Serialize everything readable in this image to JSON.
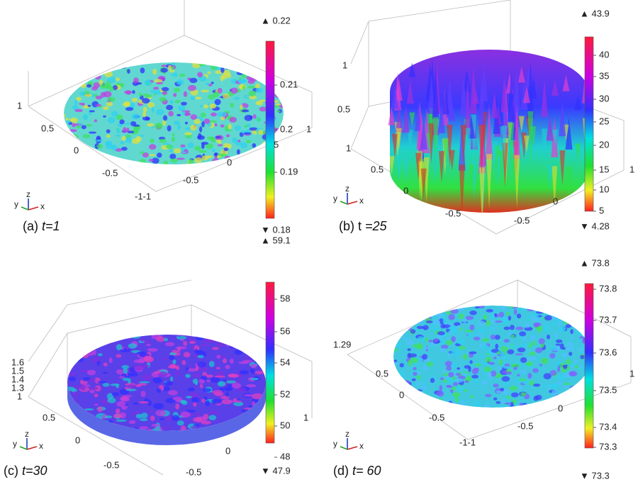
{
  "panels": [
    {
      "caption": {
        "label": "(a)",
        "time": "t=1"
      },
      "colorbar": {
        "max": "▲ 0.22",
        "min": "▼ 0.18",
        "ticks": [
          "0.21",
          "0.2",
          "0.19"
        ]
      },
      "axis_labels": [
        "1",
        "0.5",
        "0",
        "-0.5",
        "-1-1",
        "-0.5",
        "0",
        "1",
        "5"
      ],
      "triad": [
        "y",
        "z",
        "x"
      ]
    },
    {
      "caption": {
        "label": "(b) t",
        "time": "=25"
      },
      "colorbar": {
        "max": "▲ 43.9",
        "min": "▼ 4.28",
        "ticks": [
          "40",
          "35",
          "30",
          "25",
          "20",
          "15",
          "10",
          "5"
        ]
      },
      "axis_labels": [
        "1",
        "0.5",
        "1",
        "0.5",
        "0",
        "-0.5",
        "-0.5",
        "0",
        "1"
      ],
      "triad": [
        "y",
        "z",
        "x"
      ]
    },
    {
      "caption": {
        "label": "(c)",
        "time": "t=30"
      },
      "colorbar": {
        "max": "▲ 59.1",
        "min": "▼ 47.9",
        "ticks": [
          "58",
          "56",
          "54",
          "52",
          "50",
          "48"
        ]
      },
      "axis_labels": [
        "1.6",
        "1.5",
        "1.4",
        "1.3",
        "1",
        "0.5",
        "0",
        "-0.5",
        "-0.5",
        "0",
        "1"
      ],
      "triad": [
        "y",
        "z",
        "x"
      ]
    },
    {
      "caption": {
        "label": "(d)",
        "time": "t= 60"
      },
      "colorbar": {
        "max": "▲ 73.8",
        "min": "▼ 73.3",
        "ticks": [
          "73.8",
          "73.7",
          "73.6",
          "73.5",
          "73.4",
          "73.3"
        ]
      },
      "axis_labels": [
        "1.29",
        "1",
        "0.5",
        "0",
        "-0.5",
        "-1-1",
        "-0.5",
        "0"
      ],
      "triad": [
        "y",
        "z",
        "x"
      ]
    }
  ]
}
